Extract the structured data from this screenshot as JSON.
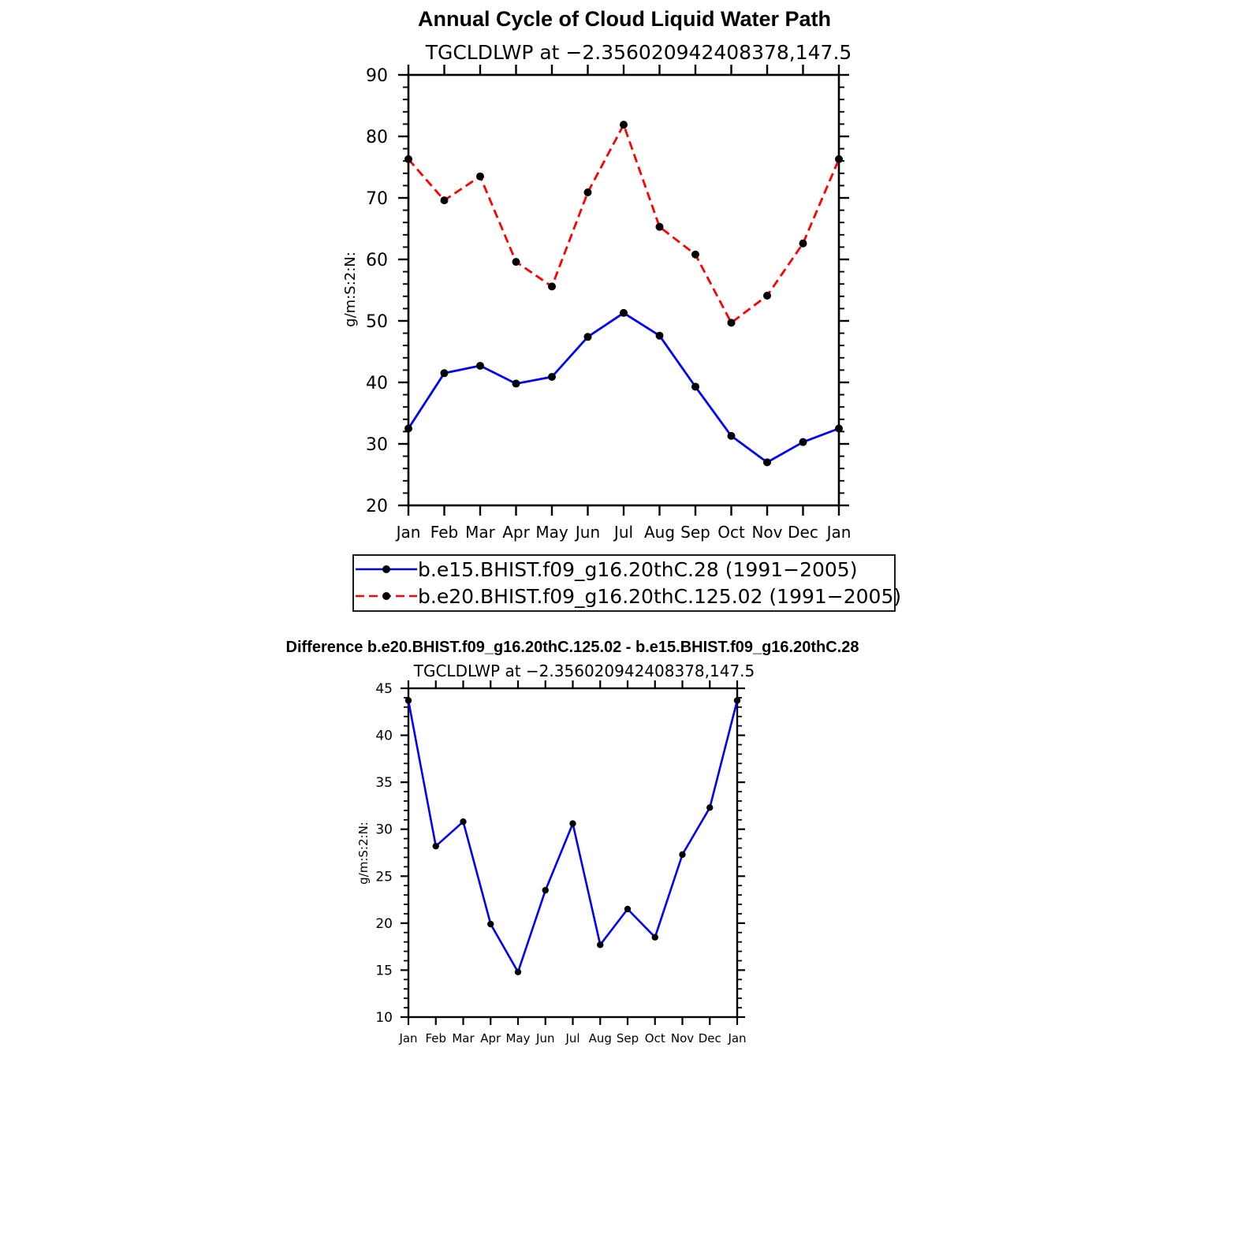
{
  "chart_data": [
    {
      "type": "line",
      "title": "Annual Cycle of Cloud Liquid Water Path",
      "subtitle": "TGCLDLWP at −2.356020942408378,147.5",
      "xlabel": "",
      "ylabel": "g/m:S:2:N:",
      "categories": [
        "Jan",
        "Feb",
        "Mar",
        "Apr",
        "May",
        "Jun",
        "Jul",
        "Aug",
        "Sep",
        "Oct",
        "Nov",
        "Dec",
        "Jan"
      ],
      "ylim": [
        20,
        90
      ],
      "yticks": [
        "20",
        "30",
        "40",
        "50",
        "60",
        "70",
        "80",
        "90"
      ],
      "yticks_values": [
        20,
        30,
        40,
        50,
        60,
        70,
        80,
        90
      ],
      "legend_position": "bottom",
      "series": [
        {
          "name": "b.e15.BHIST.f09_g16.20thC.28 (1991−2005)",
          "color": "#0000ff",
          "style": "solid",
          "values": [
            32.5,
            41.5,
            42.7,
            39.8,
            40.9,
            47.4,
            51.3,
            47.6,
            39.3,
            31.3,
            27.0,
            30.3,
            32.5
          ]
        },
        {
          "name": "b.e20.BHIST.f09_g16.20thC.125.02 (1991−2005)",
          "color": "#ff0000",
          "style": "dashed",
          "values": [
            76.3,
            69.6,
            73.5,
            59.6,
            55.6,
            70.9,
            81.9,
            65.3,
            60.8,
            49.7,
            54.1,
            62.6,
            76.3
          ]
        }
      ]
    },
    {
      "type": "line",
      "title": "Difference b.e20.BHIST.f09_g16.20thC.125.02 - b.e15.BHIST.f09_g16.20thC.28",
      "subtitle": "TGCLDLWP at −2.356020942408378,147.5",
      "xlabel": "",
      "ylabel": "g/m:S:2:N:",
      "categories": [
        "Jan",
        "Feb",
        "Mar",
        "Apr",
        "May",
        "Jun",
        "Jul",
        "Aug",
        "Sep",
        "Oct",
        "Nov",
        "Dec",
        "Jan"
      ],
      "ylim": [
        10,
        45
      ],
      "yticks": [
        "10",
        "15",
        "20",
        "25",
        "30",
        "35",
        "40",
        "45"
      ],
      "yticks_values": [
        10,
        15,
        20,
        25,
        30,
        35,
        40,
        45
      ],
      "series": [
        {
          "name": "Difference",
          "color": "#0000ff",
          "style": "solid",
          "values": [
            43.7,
            28.2,
            30.8,
            19.9,
            14.8,
            23.5,
            30.6,
            17.7,
            21.5,
            18.5,
            27.3,
            32.3,
            43.7
          ]
        }
      ]
    }
  ]
}
